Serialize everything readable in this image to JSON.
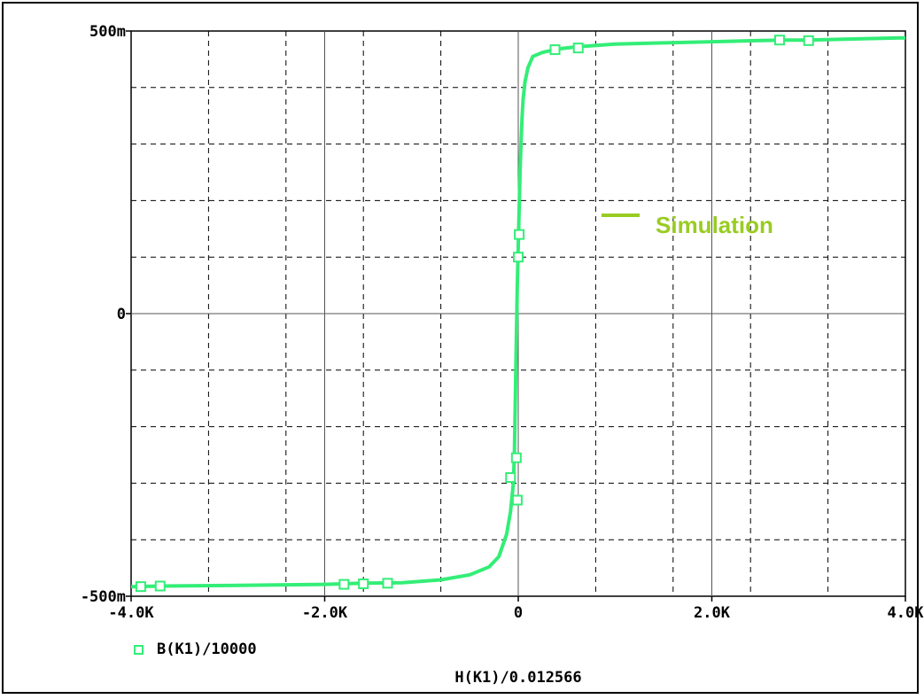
{
  "chart_data": {
    "type": "line",
    "colors": {
      "trace": "#33ee77",
      "annotation": "#99cc22",
      "grid": "#000000"
    },
    "xlim": [
      -4000,
      4000
    ],
    "ylim": [
      -0.5,
      0.5
    ],
    "grid": true,
    "grid_style": "dashed",
    "x_ticks": [
      {
        "value": -4000,
        "label": "-4.0K"
      },
      {
        "value": -2000,
        "label": "-2.0K"
      },
      {
        "value": 0,
        "label": "0"
      },
      {
        "value": 2000,
        "label": "2.0K"
      },
      {
        "value": 4000,
        "label": "4.0K"
      }
    ],
    "y_ticks": [
      {
        "value": 0.5,
        "label": "500m"
      },
      {
        "value": 0,
        "label": "0"
      },
      {
        "value": -0.5,
        "label": "-500m"
      }
    ],
    "xlabel": "H(K1)/0.012566",
    "legend": {
      "label": "B(K1)/10000",
      "marker": "square"
    },
    "annotation": {
      "text": "Simulation"
    },
    "series": [
      {
        "name": "B(K1)/10000",
        "x": [
          -4000,
          -3700,
          -3000,
          -2000,
          -1600,
          -1200,
          -800,
          -500,
          -300,
          -200,
          -120,
          -80,
          -50,
          -40,
          -30,
          -20,
          -10,
          0,
          10,
          20,
          30,
          40,
          50,
          70,
          100,
          150,
          250,
          400,
          600,
          1000,
          1500,
          2000,
          2500,
          2750,
          3000,
          3500,
          4000
        ],
        "y": [
          -0.483,
          -0.482,
          -0.481,
          -0.479,
          -0.477,
          -0.476,
          -0.471,
          -0.462,
          -0.448,
          -0.43,
          -0.39,
          -0.35,
          -0.3,
          -0.25,
          -0.15,
          -0.05,
          0.05,
          0.12,
          0.19,
          0.26,
          0.31,
          0.35,
          0.38,
          0.41,
          0.435,
          0.455,
          0.462,
          0.468,
          0.472,
          0.477,
          0.479,
          0.481,
          0.483,
          0.484,
          0.484,
          0.486,
          0.488
        ],
        "markers": [
          {
            "x": -3900,
            "y": -0.483
          },
          {
            "x": -3700,
            "y": -0.482
          },
          {
            "x": -1800,
            "y": -0.479
          },
          {
            "x": -1600,
            "y": -0.478
          },
          {
            "x": -1350,
            "y": -0.477
          },
          {
            "x": -80,
            "y": -0.29
          },
          {
            "x": -20,
            "y": -0.255
          },
          {
            "x": -10,
            "y": -0.33
          },
          {
            "x": 0,
            "y": 0.1
          },
          {
            "x": 10,
            "y": 0.14
          },
          {
            "x": 380,
            "y": 0.467
          },
          {
            "x": 620,
            "y": 0.47
          },
          {
            "x": 2700,
            "y": 0.484
          },
          {
            "x": 3000,
            "y": 0.483
          }
        ]
      }
    ]
  }
}
